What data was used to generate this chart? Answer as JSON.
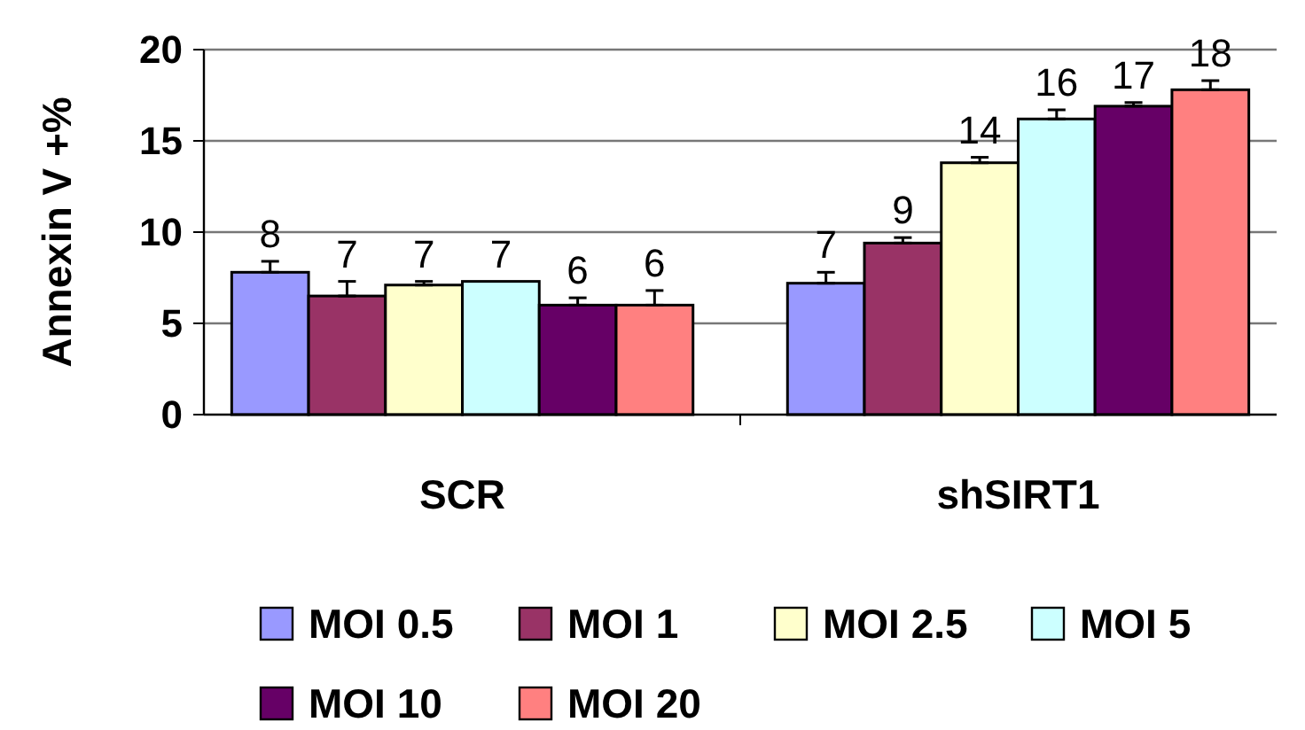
{
  "chart_data": {
    "type": "bar",
    "ylabel": "Annexin V +%",
    "categories": [
      "SCR",
      "shSIRT1"
    ],
    "ylim": [
      0,
      20
    ],
    "yticks": [
      0,
      5,
      10,
      15,
      20
    ],
    "grid": "y",
    "legend": "bottom",
    "series": [
      {
        "name": "MOI 0.5",
        "color": "#9999ff",
        "values": [
          7.8,
          7.2
        ],
        "errors": [
          [
            7.8,
            8.4
          ],
          [
            7.2,
            7.8
          ]
        ],
        "value_labels": [
          "8",
          "7"
        ]
      },
      {
        "name": "MOI 1",
        "color": "#993366",
        "values": [
          6.5,
          9.4
        ],
        "errors": [
          [
            6.5,
            7.3
          ],
          [
            9.4,
            9.7
          ]
        ],
        "value_labels": [
          "7",
          "9"
        ]
      },
      {
        "name": "MOI 2.5",
        "color": "#ffffcc",
        "values": [
          7.1,
          13.8
        ],
        "errors": [
          [
            7.1,
            7.3
          ],
          [
            13.8,
            14.1
          ]
        ],
        "value_labels": [
          "7",
          "14"
        ]
      },
      {
        "name": "MOI 5",
        "color": "#ccffff",
        "values": [
          7.3,
          16.2
        ],
        "errors": [
          null,
          [
            16.2,
            16.7
          ]
        ],
        "value_labels": [
          "7",
          "16"
        ]
      },
      {
        "name": "MOI 10",
        "color": "#660066",
        "values": [
          6.0,
          16.9
        ],
        "errors": [
          [
            6.0,
            6.4
          ],
          [
            16.9,
            17.1
          ]
        ],
        "value_labels": [
          "6",
          "17"
        ]
      },
      {
        "name": "MOI 20",
        "color": "#ff8080",
        "values": [
          6.0,
          17.8
        ],
        "errors": [
          [
            6.0,
            6.8
          ],
          [
            17.8,
            18.3
          ]
        ],
        "value_labels": [
          "6",
          "18"
        ]
      }
    ]
  }
}
